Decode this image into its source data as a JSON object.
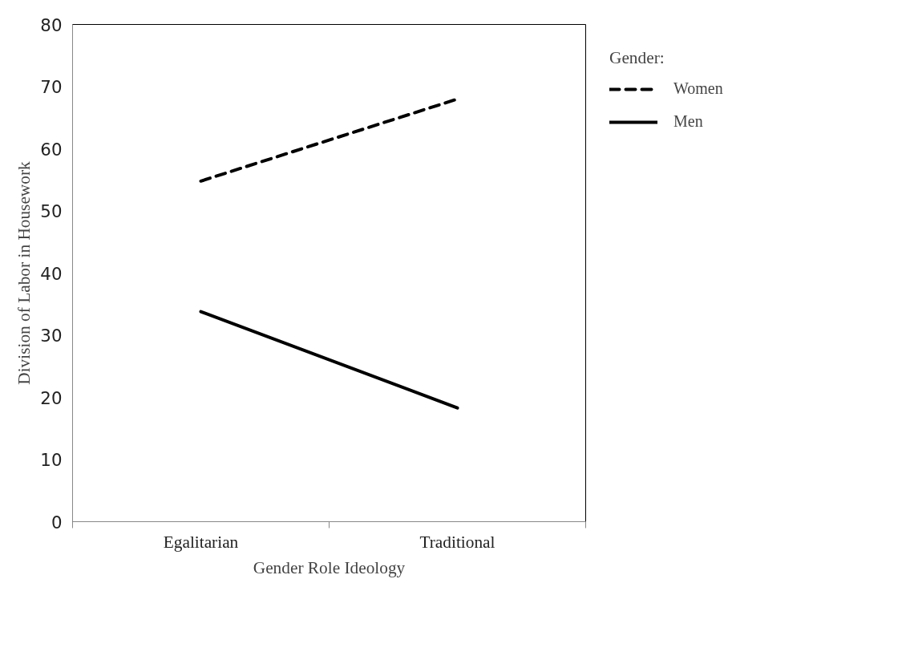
{
  "chart_data": {
    "type": "line",
    "xlabel": "Gender Role Ideology",
    "ylabel": "Division of Labor in Housework",
    "categories": [
      "Egalitarian",
      "Traditional"
    ],
    "series": [
      {
        "name": "Women",
        "color": "#000000",
        "values": [
          54.8,
          68.0
        ],
        "line_style": "dashed"
      },
      {
        "name": "Men",
        "color": "#000000",
        "values": [
          33.8,
          18.3
        ],
        "line_style": "solid"
      }
    ],
    "ylim": [
      0,
      80
    ],
    "yticks": [
      0,
      10,
      20,
      30,
      40,
      50,
      60,
      70,
      80
    ],
    "grid": false,
    "legend": "right",
    "legend_title": "Gender:",
    "marker": "none"
  }
}
